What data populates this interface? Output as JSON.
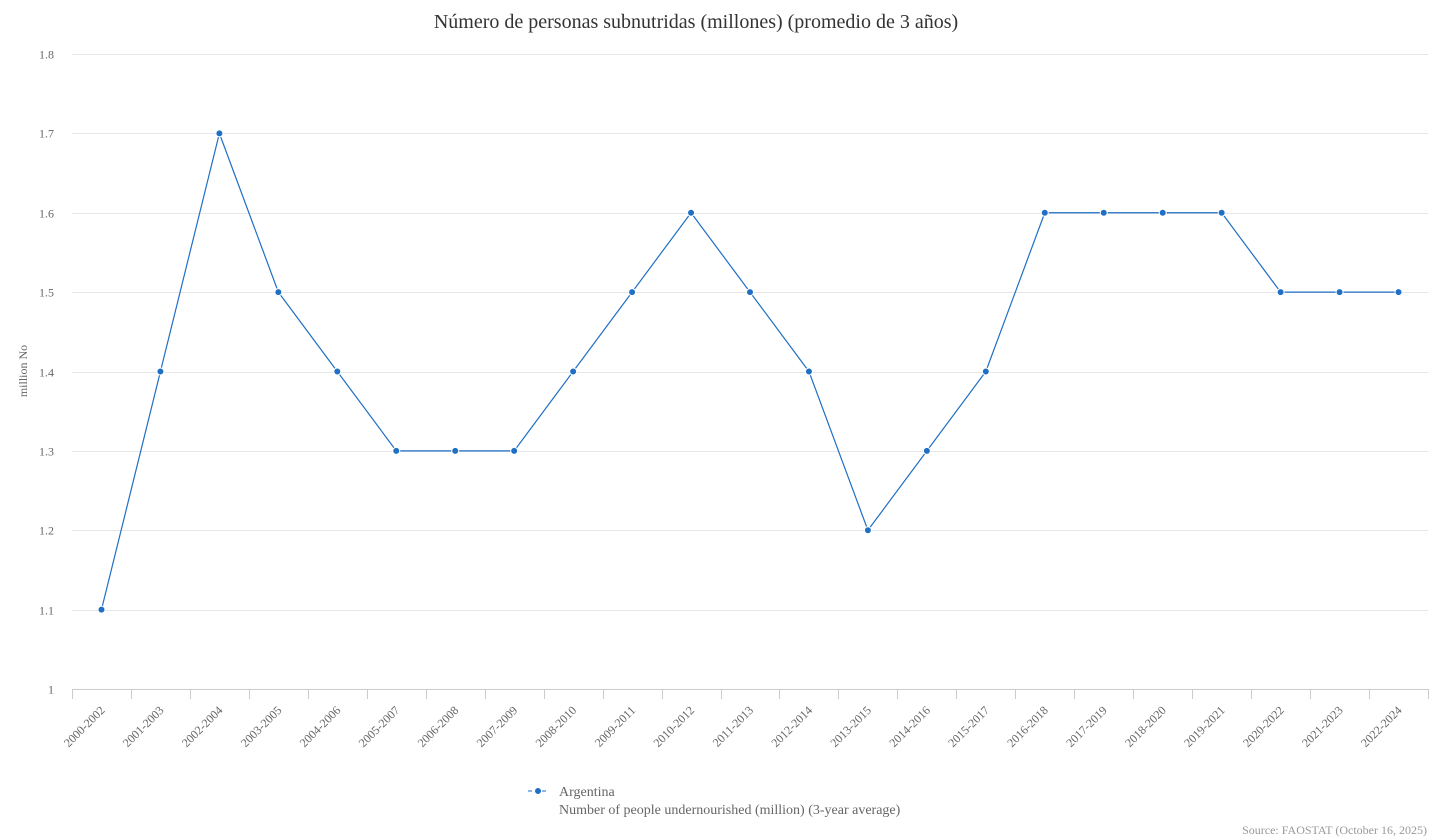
{
  "chart_data": {
    "type": "line",
    "title": "Número de personas subnutridas (millones) (promedio de 3 años)",
    "xlabel": "",
    "ylabel": "million No",
    "ylim": [
      1,
      1.8
    ],
    "yticks": [
      "1",
      "1.1",
      "1.2",
      "1.3",
      "1.4",
      "1.5",
      "1.6",
      "1.7",
      "1.8"
    ],
    "grid": true,
    "legend_position": "bottom-center",
    "categories": [
      "2000-2002",
      "2001-2003",
      "2002-2004",
      "2003-2005",
      "2004-2006",
      "2005-2007",
      "2006-2008",
      "2007-2009",
      "2008-2010",
      "2009-2011",
      "2010-2012",
      "2011-2013",
      "2012-2014",
      "2013-2015",
      "2014-2016",
      "2015-2017",
      "2016-2018",
      "2017-2019",
      "2018-2020",
      "2019-2021",
      "2020-2022",
      "2021-2023",
      "2022-2024"
    ],
    "series": [
      {
        "name": "Argentina",
        "description": "Number of people undernourished (million) (3-year average)",
        "color": "#1f6fc5",
        "values": [
          1.1,
          1.4,
          1.7,
          1.5,
          1.4,
          1.3,
          1.3,
          1.3,
          1.4,
          1.5,
          1.6,
          1.5,
          1.4,
          1.2,
          1.3,
          1.4,
          1.6,
          1.6,
          1.6,
          1.6,
          1.5,
          1.5,
          1.5
        ]
      }
    ],
    "source": "Source: FAOSTAT (October 16, 2025)"
  }
}
